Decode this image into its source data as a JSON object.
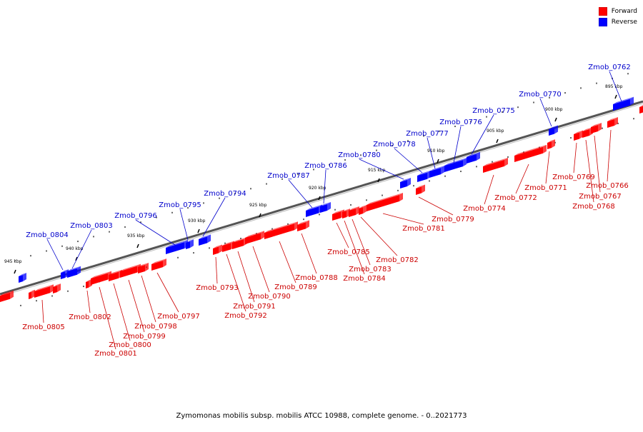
{
  "title": "Zymomonas mobilis subsp. mobilis ATCC 10988, complete genome. - 0..2021773",
  "legend": [
    {
      "label": "Forward",
      "color": "#ff0000"
    },
    {
      "label": "Reverse",
      "color": "#0000ff"
    }
  ],
  "colors": {
    "forward": "#ff0000",
    "reverse": "#0000ff",
    "forward_label": "#cc0000",
    "reverse_label": "#0000cc",
    "backbone": "#888888"
  },
  "ticks": [
    "895 kbp",
    "900 kbp",
    "905 kbp",
    "910 kbp",
    "915 kbp",
    "920 kbp",
    "925 kbp",
    "930 kbp",
    "935 kbp",
    "940 kbp",
    "945 kbp"
  ],
  "forward_genes": [
    "Zmob_0766",
    "Zmob_0767",
    "Zmob_0768",
    "Zmob_0769",
    "Zmob_0771",
    "Zmob_0772",
    "Zmob_0774",
    "Zmob_0779",
    "Zmob_0781",
    "Zmob_0782",
    "Zmob_0783",
    "Zmob_0784",
    "Zmob_0785",
    "Zmob_0788",
    "Zmob_0789",
    "Zmob_0790",
    "Zmob_0791",
    "Zmob_0792",
    "Zmob_0793",
    "Zmob_0797",
    "Zmob_0798",
    "Zmob_0799",
    "Zmob_0800",
    "Zmob_0801",
    "Zmob_0802",
    "Zmob_0805"
  ],
  "reverse_genes": [
    "Zmob_0762",
    "Zmob_0770",
    "Zmob_0775",
    "Zmob_0776",
    "Zmob_0777",
    "Zmob_0778",
    "Zmob_0780",
    "Zmob_0786",
    "Zmob_0787",
    "Zmob_0794",
    "Zmob_0795",
    "Zmob_0796",
    "Zmob_0803",
    "Zmob_0804"
  ]
}
